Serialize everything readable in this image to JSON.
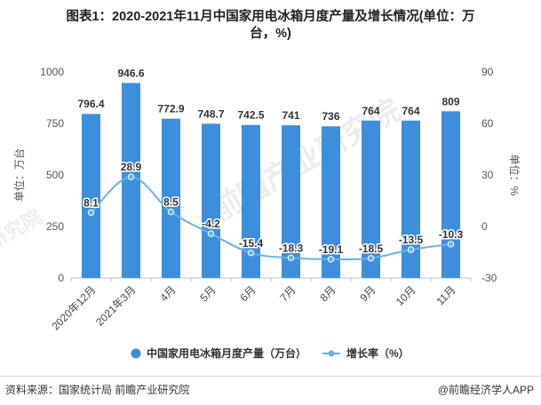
{
  "chart_data": {
    "type": "bar+line",
    "title_line1": "图表1：2020-2021年11月中国家用电冰箱月度产量及增长情况(单位：万",
    "title_line2": "台，%)",
    "categories": [
      "2020年12月",
      "2021年3月",
      "4月",
      "5月",
      "6月",
      "7月",
      "8月",
      "9月",
      "10月",
      "11月"
    ],
    "series": [
      {
        "name": "中国家用电冰箱月度产量（万台）",
        "type": "bar",
        "axis": "left",
        "color": "#3d8fdb",
        "values": [
          796.4,
          946.6,
          772.9,
          748.7,
          742.5,
          741,
          736,
          764,
          764,
          809
        ],
        "labels": [
          "796.4",
          "946.6",
          "772.9",
          "748.7",
          "742.5",
          "741",
          "736",
          "764",
          "764",
          "809"
        ]
      },
      {
        "name": "增长率（%）",
        "type": "line",
        "axis": "right",
        "color": "#6ab0e8",
        "values": [
          8.1,
          28.9,
          8.5,
          -4.2,
          -15.4,
          -18.3,
          -19.1,
          -18.5,
          -13.5,
          -10.3
        ],
        "labels": [
          "8.1",
          "28.9",
          "8.5",
          "-4.2",
          "-15.4",
          "-18.3",
          "-19.1",
          "-18.5",
          "-13.5",
          "-10.3"
        ]
      }
    ],
    "y_left": {
      "label": "单位：万台",
      "ticks": [
        "0",
        "250",
        "500",
        "750",
        "1000"
      ],
      "range": [
        0,
        1000
      ]
    },
    "y_right": {
      "label": "单位：%",
      "ticks": [
        "-30",
        "0",
        "30",
        "60",
        "90"
      ],
      "range": [
        -30,
        90
      ]
    },
    "legend_position": "bottom",
    "grid": false
  },
  "footer": {
    "source": "资料来源：国家统计局 前瞻产业研究院",
    "brand": "@前瞻经济学人APP"
  },
  "watermark": "前瞻产业研究院"
}
